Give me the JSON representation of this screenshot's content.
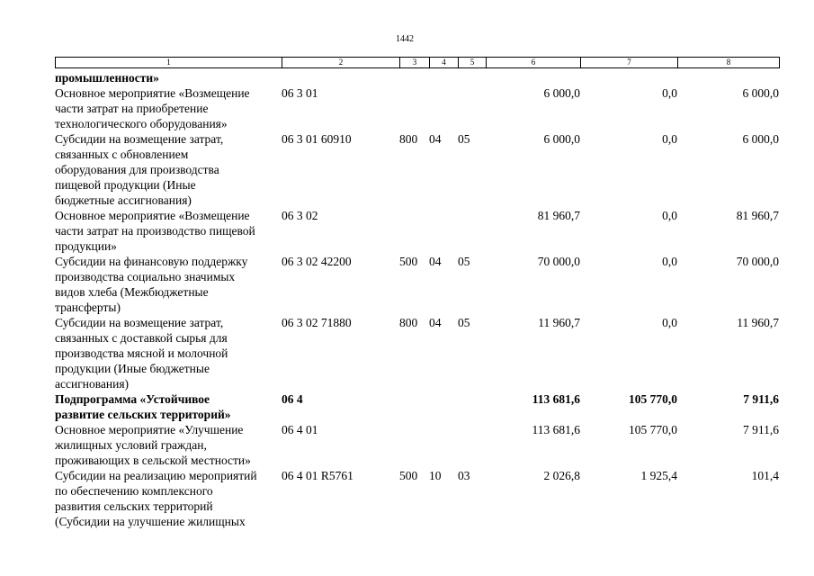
{
  "page_number": "1442",
  "header": [
    "1",
    "2",
    "3",
    "4",
    "5",
    "6",
    "7",
    "8"
  ],
  "rows": [
    {
      "bold": true,
      "desc": "промышленности»",
      "code": "",
      "c3": "",
      "c4": "",
      "c5": "",
      "v6": "",
      "v7": "",
      "v8": ""
    },
    {
      "bold": false,
      "desc": "Основное мероприятие «Возмещение\nчасти затрат на приобретение\nтехнологического оборудования»",
      "code": "06 3 01",
      "c3": "",
      "c4": "",
      "c5": "",
      "v6": "6 000,0",
      "v7": "0,0",
      "v8": "6 000,0"
    },
    {
      "bold": false,
      "desc": "Субсидии на возмещение затрат,\nсвязанных с обновлением\nоборудования для производства\nпищевой продукции (Иные\nбюджетные ассигнования)",
      "code": "06 3 01 60910",
      "c3": "800",
      "c4": "04",
      "c5": "05",
      "v6": "6 000,0",
      "v7": "0,0",
      "v8": "6 000,0"
    },
    {
      "bold": false,
      "desc": "Основное мероприятие «Возмещение\nчасти затрат на производство пищевой\nпродукции»",
      "code": "06 3 02",
      "c3": "",
      "c4": "",
      "c5": "",
      "v6": "81 960,7",
      "v7": "0,0",
      "v8": "81 960,7"
    },
    {
      "bold": false,
      "desc": "Субсидии на финансовую поддержку\nпроизводства социально значимых\nвидов хлеба (Межбюджетные\nтрансферты)",
      "code": "06 3 02 42200",
      "c3": "500",
      "c4": "04",
      "c5": "05",
      "v6": "70 000,0",
      "v7": "0,0",
      "v8": "70 000,0"
    },
    {
      "bold": false,
      "desc": "Субсидии на возмещение затрат,\nсвязанных с доставкой сырья для\nпроизводства мясной и молочной\nпродукции (Иные бюджетные\nассигнования)",
      "code": "06 3 02 71880",
      "c3": "800",
      "c4": "04",
      "c5": "05",
      "v6": "11 960,7",
      "v7": "0,0",
      "v8": "11 960,7"
    },
    {
      "bold": true,
      "desc": "Подпрограмма «Устойчивое\nразвитие сельских территорий»",
      "code": "06 4",
      "c3": "",
      "c4": "",
      "c5": "",
      "v6": "113 681,6",
      "v7": "105 770,0",
      "v8": "7 911,6"
    },
    {
      "bold": false,
      "desc": "Основное мероприятие «Улучшение\nжилищных условий граждан,\nпроживающих в сельской местности»",
      "code": "06 4 01",
      "c3": "",
      "c4": "",
      "c5": "",
      "v6": "113 681,6",
      "v7": "105 770,0",
      "v8": "7 911,6"
    },
    {
      "bold": false,
      "desc": "Субсидии на реализацию мероприятий\nпо обеспечению комплексного\nразвития сельских территорий\n(Субсидии на улучшение жилищных",
      "code": "06 4 01 R5761",
      "c3": "500",
      "c4": "10",
      "c5": "03",
      "v6": "2 026,8",
      "v7": "1 925,4",
      "v8": "101,4"
    }
  ]
}
